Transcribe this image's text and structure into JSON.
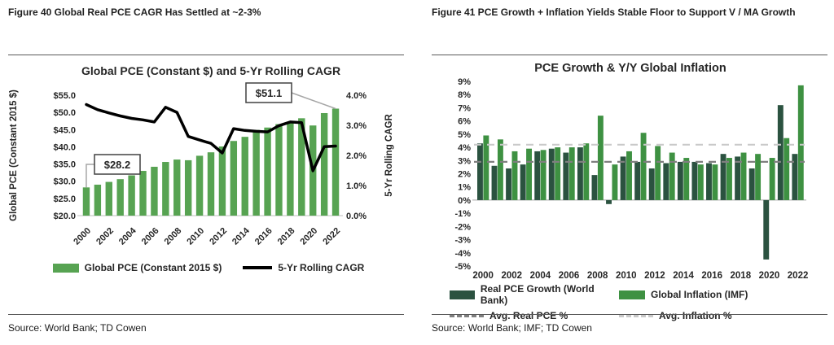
{
  "figures": [
    {
      "heading": "Figure 40 Global Real PCE CAGR Has Settled at ~2-3%",
      "source": "Source: World Bank; TD Cowen",
      "legend": [
        {
          "label": "Global PCE (Constant 2015 $)",
          "swatch": "bar",
          "color": "#57a352"
        },
        {
          "label": "5-Yr Rolling CAGR",
          "swatch": "line",
          "color": "#000000"
        }
      ]
    },
    {
      "heading": "Figure 41 PCE Growth + Inflation Yields Stable Floor to Support V / MA Growth",
      "source": "Source: World Bank; IMF; TD Cowen",
      "legend": [
        {
          "label": "Real PCE Growth (World Bank)",
          "swatch": "bar",
          "color": "#2b5240"
        },
        {
          "label": "Global Inflation (IMF)",
          "swatch": "bar",
          "color": "#3e9142"
        },
        {
          "label": "Avg. Real PCE %",
          "swatch": "dash",
          "color": "#7f7f7f"
        },
        {
          "label": "Avg. Inflation %",
          "swatch": "dash",
          "color": "#c9c9c9"
        }
      ]
    }
  ],
  "chart_data": [
    {
      "type": "bar",
      "subtype": "bar+line-combo",
      "title": "Global PCE (Constant $) and 5-Yr Rolling CAGR",
      "categories": [
        2000,
        2001,
        2002,
        2003,
        2004,
        2005,
        2006,
        2007,
        2008,
        2009,
        2010,
        2011,
        2012,
        2013,
        2014,
        2015,
        2016,
        2017,
        2018,
        2019,
        2020,
        2021,
        2022
      ],
      "series": [
        {
          "name": "Global PCE (Constant 2015 $)",
          "type": "bar",
          "axis": "left",
          "color": "#57a352",
          "values": [
            28.2,
            29.0,
            29.8,
            30.6,
            31.7,
            33.0,
            34.2,
            35.6,
            36.3,
            36.1,
            37.4,
            38.4,
            40.1,
            41.7,
            42.9,
            44.9,
            45.6,
            46.6,
            47.3,
            48.3,
            46.2,
            49.8,
            51.1
          ]
        },
        {
          "name": "5-Yr Rolling CAGR",
          "type": "line",
          "axis": "right",
          "color": "#000000",
          "values": [
            3.69,
            3.52,
            3.41,
            3.31,
            3.23,
            3.18,
            3.11,
            3.6,
            3.43,
            2.63,
            2.51,
            2.4,
            2.08,
            2.89,
            2.83,
            2.8,
            2.78,
            2.99,
            3.11,
            3.09,
            1.49,
            2.29,
            2.31
          ]
        }
      ],
      "left_axis": {
        "title": "Global PCE (Constant 2015 $)",
        "min": 20,
        "max": 55,
        "ticks": [
          "$55.0",
          "$50.0",
          "$45.0",
          "$40.0",
          "$35.0",
          "$30.0",
          "$25.0",
          "$20.0"
        ]
      },
      "right_axis": {
        "title": "5-Yr Rolling CAGR",
        "min": 0,
        "max": 4,
        "ticks": [
          "4.0%",
          "3.0%",
          "2.0%",
          "1.0%",
          "0.0%"
        ]
      },
      "x_label_every": 2,
      "grid": false,
      "legend_position": "bottom",
      "annotations": [
        {
          "text": "$28.2",
          "year": 2000
        },
        {
          "text": "$51.1",
          "year": 2022
        }
      ]
    },
    {
      "type": "bar",
      "subtype": "grouped-bar",
      "title": "PCE Growth & Y/Y Global Inflation",
      "categories": [
        2000,
        2001,
        2002,
        2003,
        2004,
        2005,
        2006,
        2007,
        2008,
        2009,
        2010,
        2011,
        2012,
        2013,
        2014,
        2015,
        2016,
        2017,
        2018,
        2019,
        2020,
        2021,
        2022
      ],
      "series": [
        {
          "name": "Real PCE Growth (World Bank)",
          "color": "#2b5240",
          "values": [
            4.3,
            2.6,
            2.4,
            2.7,
            3.7,
            3.9,
            3.6,
            4.0,
            1.9,
            -0.3,
            3.3,
            2.9,
            2.4,
            2.8,
            2.9,
            2.9,
            2.8,
            3.5,
            3.3,
            2.4,
            -4.5,
            7.2,
            3.5
          ]
        },
        {
          "name": "Global Inflation (IMF)",
          "color": "#3e9142",
          "values": [
            4.9,
            4.6,
            3.7,
            3.9,
            3.8,
            4.0,
            4.0,
            4.3,
            6.4,
            2.7,
            3.7,
            5.1,
            4.1,
            3.6,
            3.2,
            2.7,
            2.7,
            3.2,
            3.6,
            3.5,
            3.2,
            4.7,
            8.7
          ]
        }
      ],
      "ref_lines": [
        {
          "name": "Avg. Real PCE %",
          "value": 2.9,
          "color": "#7f7f7f"
        },
        {
          "name": "Avg. Inflation %",
          "value": 4.2,
          "color": "#c9c9c9"
        }
      ],
      "y_axis": {
        "min": -5,
        "max": 9,
        "ticks": [
          "9%",
          "8%",
          "7%",
          "6%",
          "5%",
          "4%",
          "3%",
          "2%",
          "1%",
          "0%",
          "-1%",
          "-2%",
          "-3%",
          "-4%",
          "-5%"
        ]
      },
      "x_label_every": 2,
      "grid": false,
      "legend_position": "bottom"
    }
  ]
}
